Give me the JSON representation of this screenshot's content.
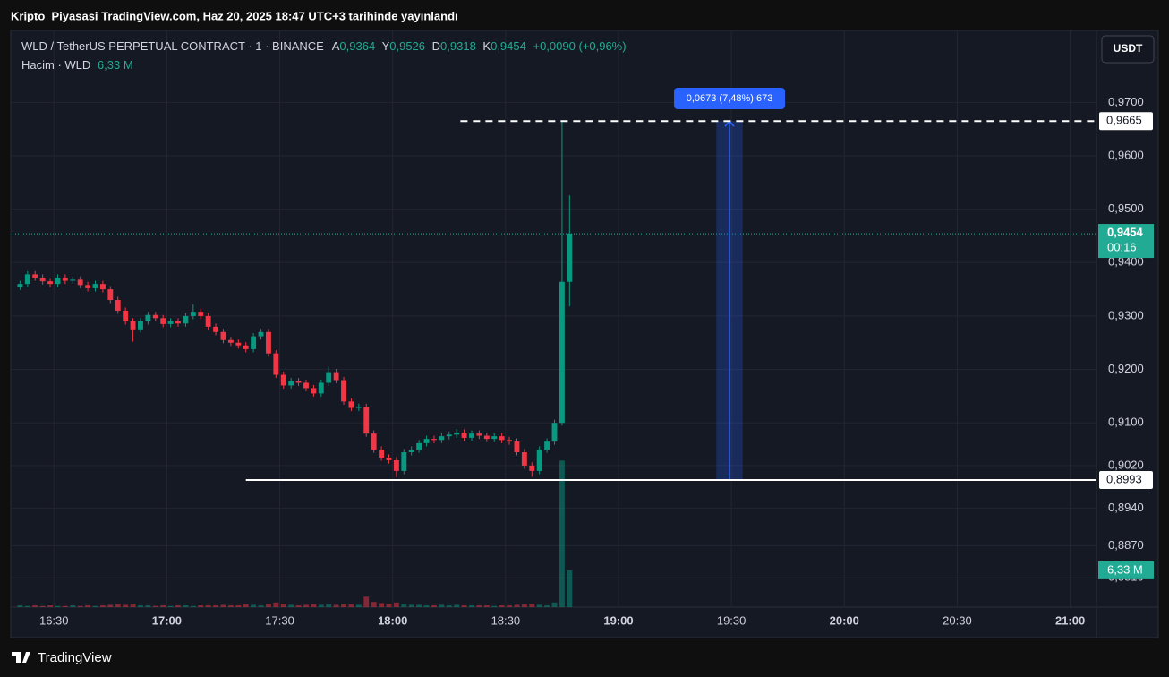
{
  "chart_data": {
    "type": "candlestick",
    "page_title": "Kripto_Piyasasi TradingView.com, Haz 20, 2025 18:47 UTC+3 tarihinde yayınlandı",
    "brand": "TradingView",
    "currency_button": "USDT",
    "legend": {
      "open_key": "A",
      "open": "0,9364",
      "high_key": "Y",
      "high": "0,9526",
      "low_key": "D",
      "low": "0,9318",
      "close_key": "K",
      "close": "0,9454",
      "change": "+0,0090 (+0,96%)",
      "volume": "6,33 M"
    },
    "x": [
      "16:21",
      "16:23",
      "16:25",
      "16:27",
      "16:29",
      "16:31",
      "16:33",
      "16:35",
      "16:37",
      "16:39",
      "16:41",
      "16:43",
      "16:45",
      "16:47",
      "16:49",
      "16:51",
      "16:53",
      "16:55",
      "16:57",
      "16:59",
      "17:01",
      "17:03",
      "17:05",
      "17:07",
      "17:09",
      "17:11",
      "17:13",
      "17:15",
      "17:17",
      "17:19",
      "17:21",
      "17:23",
      "17:25",
      "17:27",
      "17:29",
      "17:31",
      "17:33",
      "17:35",
      "17:37",
      "17:39",
      "17:41",
      "17:43",
      "17:45",
      "17:47",
      "17:49",
      "17:51",
      "17:53",
      "17:55",
      "17:57",
      "17:59",
      "18:01",
      "18:03",
      "18:05",
      "18:07",
      "18:09",
      "18:11",
      "18:13",
      "18:15",
      "18:17",
      "18:19",
      "18:21",
      "18:23",
      "18:25",
      "18:27",
      "18:29",
      "18:31",
      "18:33",
      "18:35",
      "18:37",
      "18:39",
      "18:41",
      "18:43",
      "18:45",
      "18:47"
    ],
    "series": [
      {
        "name": "WLD / TetherUS PERPETUAL CONTRACT · 1 · BINANCE",
        "up_color": "#089981",
        "down_color": "#f23645",
        "open": [
          0.9355,
          0.936,
          0.9378,
          0.9372,
          0.9365,
          0.936,
          0.9372,
          0.9366,
          0.9368,
          0.9358,
          0.9352,
          0.936,
          0.935,
          0.933,
          0.931,
          0.929,
          0.9275,
          0.929,
          0.9302,
          0.9296,
          0.9285,
          0.929,
          0.9286,
          0.93,
          0.9308,
          0.93,
          0.928,
          0.927,
          0.9255,
          0.925,
          0.9245,
          0.9238,
          0.9262,
          0.927,
          0.923,
          0.919,
          0.917,
          0.9178,
          0.9175,
          0.9165,
          0.9155,
          0.9175,
          0.9195,
          0.918,
          0.914,
          0.9128,
          0.913,
          0.908,
          0.905,
          0.9035,
          0.903,
          0.901,
          0.9045,
          0.905,
          0.9062,
          0.907,
          0.9068,
          0.9075,
          0.9078,
          0.9082,
          0.9072,
          0.908,
          0.9076,
          0.907,
          0.9075,
          0.9068,
          0.9065,
          0.9045,
          0.902,
          0.901,
          0.905,
          0.9065,
          0.91,
          0.9364
        ],
        "high": [
          0.9366,
          0.9384,
          0.9384,
          0.9378,
          0.9371,
          0.9378,
          0.9378,
          0.9374,
          0.9374,
          0.9364,
          0.9366,
          0.9366,
          0.9356,
          0.9336,
          0.9316,
          0.9296,
          0.9296,
          0.9308,
          0.9308,
          0.9302,
          0.9296,
          0.9296,
          0.9306,
          0.9322,
          0.9314,
          0.9306,
          0.9286,
          0.9276,
          0.9261,
          0.9256,
          0.9251,
          0.9268,
          0.9276,
          0.9276,
          0.9236,
          0.9196,
          0.9184,
          0.9184,
          0.9181,
          0.9171,
          0.9181,
          0.9205,
          0.9201,
          0.9186,
          0.9146,
          0.9136,
          0.9136,
          0.9086,
          0.9056,
          0.9041,
          0.9036,
          0.9051,
          0.9056,
          0.9068,
          0.9076,
          0.9076,
          0.9081,
          0.9084,
          0.9088,
          0.9088,
          0.9086,
          0.9086,
          0.9082,
          0.9081,
          0.9081,
          0.9074,
          0.9071,
          0.9051,
          0.9026,
          0.9056,
          0.9071,
          0.9106,
          0.9665,
          0.9526
        ],
        "low": [
          0.9349,
          0.9354,
          0.9366,
          0.9359,
          0.9354,
          0.9354,
          0.936,
          0.936,
          0.9352,
          0.9346,
          0.9346,
          0.9344,
          0.9324,
          0.9304,
          0.9284,
          0.9252,
          0.9269,
          0.9284,
          0.929,
          0.9279,
          0.9279,
          0.928,
          0.928,
          0.9294,
          0.9294,
          0.9274,
          0.9264,
          0.9249,
          0.9244,
          0.9239,
          0.9232,
          0.9232,
          0.9256,
          0.9224,
          0.9184,
          0.9164,
          0.9164,
          0.9169,
          0.9159,
          0.9149,
          0.9149,
          0.9169,
          0.9174,
          0.9134,
          0.9122,
          0.9122,
          0.9074,
          0.9044,
          0.9029,
          0.9024,
          0.8998,
          0.9004,
          0.9039,
          0.9044,
          0.9056,
          0.9062,
          0.9062,
          0.9069,
          0.9072,
          0.9066,
          0.9066,
          0.907,
          0.9064,
          0.9064,
          0.9062,
          0.9059,
          0.9039,
          0.9014,
          0.8999,
          0.9004,
          0.9044,
          0.9059,
          0.9095,
          0.9318
        ],
        "close": [
          0.936,
          0.9378,
          0.9372,
          0.9365,
          0.936,
          0.9372,
          0.9366,
          0.9368,
          0.9358,
          0.9352,
          0.936,
          0.935,
          0.933,
          0.931,
          0.929,
          0.9275,
          0.929,
          0.9302,
          0.9296,
          0.9285,
          0.929,
          0.9286,
          0.93,
          0.9308,
          0.93,
          0.928,
          0.927,
          0.9255,
          0.925,
          0.9245,
          0.9238,
          0.9262,
          0.927,
          0.923,
          0.919,
          0.917,
          0.9178,
          0.9175,
          0.9165,
          0.9155,
          0.9175,
          0.9195,
          0.918,
          0.914,
          0.9128,
          0.913,
          0.908,
          0.905,
          0.9035,
          0.903,
          0.901,
          0.9045,
          0.905,
          0.9062,
          0.907,
          0.9068,
          0.9075,
          0.9078,
          0.9082,
          0.9072,
          0.908,
          0.9076,
          0.907,
          0.9075,
          0.9068,
          0.9065,
          0.9045,
          0.902,
          0.901,
          0.905,
          0.9065,
          0.91,
          0.9364,
          0.9454
        ]
      },
      {
        "name": "Hacim · WLD",
        "axis": "volume",
        "values": [
          0.3,
          0.2,
          0.3,
          0.2,
          0.3,
          0.2,
          0.2,
          0.3,
          0.2,
          0.3,
          0.2,
          0.3,
          0.4,
          0.5,
          0.4,
          0.6,
          0.3,
          0.3,
          0.2,
          0.3,
          0.2,
          0.3,
          0.3,
          0.2,
          0.3,
          0.3,
          0.3,
          0.4,
          0.3,
          0.3,
          0.5,
          0.4,
          0.3,
          0.6,
          0.8,
          0.6,
          0.4,
          0.3,
          0.4,
          0.5,
          0.4,
          0.5,
          0.4,
          0.6,
          0.5,
          0.4,
          1.8,
          0.9,
          0.7,
          0.6,
          0.8,
          0.5,
          0.4,
          0.4,
          0.3,
          0.3,
          0.4,
          0.3,
          0.4,
          0.3,
          0.3,
          0.3,
          0.3,
          0.2,
          0.3,
          0.3,
          0.4,
          0.5,
          0.6,
          0.4,
          0.3,
          0.8,
          25.2,
          6.33
        ]
      }
    ],
    "ylim": [
      0.8755,
      0.9833
    ],
    "yticks": [
      {
        "value": 0.97,
        "label": "0,9700"
      },
      {
        "value": 0.96,
        "label": "0,9600"
      },
      {
        "value": 0.95,
        "label": "0,9500"
      },
      {
        "value": 0.94,
        "label": "0,9400"
      },
      {
        "value": 0.93,
        "label": "0,9300"
      },
      {
        "value": 0.92,
        "label": "0,9200"
      },
      {
        "value": 0.91,
        "label": "0,9100"
      },
      {
        "value": 0.902,
        "label": "0,9020"
      },
      {
        "value": 0.894,
        "label": "0,8940"
      },
      {
        "value": 0.887,
        "label": "0,8870"
      },
      {
        "value": 0.881,
        "label": "0,8810"
      }
    ],
    "volume_ylim": [
      0,
      99
    ],
    "xlim": [
      "16:19",
      "21:07"
    ],
    "xticks": [
      "16:30",
      "17:00",
      "17:30",
      "18:00",
      "18:30",
      "19:00",
      "19:30",
      "20:00",
      "20:30",
      "21:00"
    ],
    "grid": true,
    "last_price": {
      "value": 0.9454,
      "label": "0,9454",
      "countdown": "00:16",
      "color": "#22ab94"
    },
    "volume_label": "6,33 M",
    "hlines": [
      {
        "value": 0.9665,
        "label": "0,9665",
        "start": "18:18",
        "dashed": true
      },
      {
        "value": 0.8993,
        "label": "0,8993",
        "start": "17:21",
        "dashed": false
      }
    ],
    "measure": {
      "from": 0.8993,
      "to": 0.9665,
      "start": "19:26",
      "end": "19:33",
      "label": "0,0673 (7,48%) 673",
      "color": "#2962ff"
    }
  }
}
